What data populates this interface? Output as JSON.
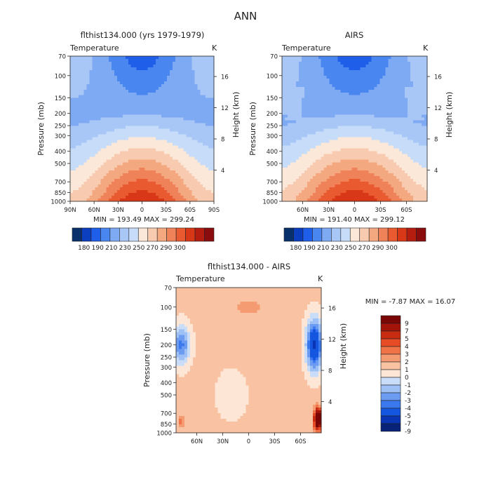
{
  "page_title": "ANN",
  "colors": {
    "temperature_scale": [
      "#08306b",
      "#0c3fbf",
      "#1f5ee8",
      "#4a86f0",
      "#7ea9f3",
      "#a8c6f6",
      "#c7dcf8",
      "#fbe8d8",
      "#f8cbb0",
      "#f4a880",
      "#ef8259",
      "#ea5a30",
      "#d93818",
      "#b51d10",
      "#8a0c0c"
    ],
    "difference_scale": [
      "#08227a",
      "#0a35b5",
      "#1556e0",
      "#3a78ee",
      "#6b9cf2",
      "#9fc0f5",
      "#c9ddf8",
      "#fde6d6",
      "#f9c2a3",
      "#f59b72",
      "#f07348",
      "#e54b24",
      "#c72b12",
      "#a21409",
      "#7a0606"
    ]
  },
  "chart_data": [
    {
      "type": "heatmap",
      "subtitle": "flthist134.000 (yrs 1979-1979)",
      "field_label": "Temperature",
      "unit": "K",
      "ylabel": "Pressure (mb)",
      "ylabel_right": "Height (km)",
      "xticks": [
        "90N",
        "60N",
        "30N",
        "0",
        "30S",
        "60S",
        "90S"
      ],
      "yticks": [
        70,
        100,
        150,
        200,
        250,
        300,
        400,
        500,
        700,
        850,
        1000
      ],
      "height_ticks": [
        4,
        8,
        12,
        16
      ],
      "min": 193.49,
      "max": 299.24,
      "stats_text": "MIN = 193.49   MAX = 299.24",
      "colorbar_labels": [
        "180",
        "190",
        "210",
        "230",
        "250",
        "270",
        "290",
        "300"
      ]
    },
    {
      "type": "heatmap",
      "subtitle": "AIRS",
      "field_label": "Temperature",
      "unit": "K",
      "ylabel": "Pressure (mb)",
      "ylabel_right": "Height (km)",
      "xticks": [
        "60N",
        "30N",
        "0",
        "30S",
        "60S"
      ],
      "yticks": [
        70,
        100,
        150,
        200,
        250,
        300,
        400,
        500,
        700,
        850,
        1000
      ],
      "height_ticks": [
        4,
        8,
        12,
        16
      ],
      "min": 191.4,
      "max": 299.12,
      "stats_text": "MIN = 191.40   MAX = 299.12",
      "colorbar_labels": [
        "180",
        "190",
        "210",
        "230",
        "250",
        "270",
        "290",
        "300"
      ]
    },
    {
      "type": "heatmap",
      "subtitle": "flthist134.000 - AIRS",
      "field_label": "Temperature",
      "unit": "K",
      "ylabel": "Pressure (mb)",
      "ylabel_right": "Height (km)",
      "xticks": [
        "60N",
        "30N",
        "0",
        "30S",
        "60S"
      ],
      "yticks": [
        70,
        100,
        150,
        200,
        250,
        300,
        400,
        500,
        700,
        850,
        1000
      ],
      "height_ticks": [
        4,
        8,
        12,
        16
      ],
      "min": -7.87,
      "max": 16.07,
      "stats_text": "MIN =  -7.87   MAX =  16.07",
      "colorbar_labels": [
        "9",
        "7",
        "5",
        "4",
        "3",
        "2",
        "1",
        "0",
        "-1",
        "-2",
        "-3",
        "-4",
        "-5",
        "-7",
        "-9"
      ]
    }
  ]
}
